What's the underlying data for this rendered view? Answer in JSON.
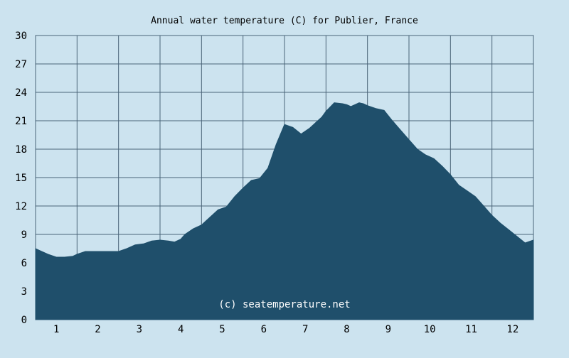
{
  "colors": {
    "background": "#cce3ef",
    "plot_background": "#cce3ef",
    "area_fill": "#1f4f6b",
    "grid": "#4a6478",
    "text": "#000000",
    "watermark": "#ffffff"
  },
  "chart_data": {
    "type": "area",
    "title": "Annual water temperature (C) for Publier, France",
    "xlabel": "",
    "ylabel": "",
    "watermark": "(c) seatemperature.net",
    "ylim": [
      0,
      30
    ],
    "xlim": [
      0,
      12
    ],
    "y_ticks": [
      "0",
      "3",
      "6",
      "9",
      "12",
      "15",
      "18",
      "21",
      "24",
      "27",
      "30"
    ],
    "x_ticks": [
      "1",
      "2",
      "3",
      "4",
      "5",
      "6",
      "7",
      "8",
      "9",
      "10",
      "11",
      "12"
    ],
    "grid": true,
    "series": [
      {
        "x": [
          0.0,
          0.1,
          0.3,
          0.5,
          0.7,
          0.9,
          1.0,
          1.2,
          1.4,
          1.6,
          1.8,
          2.0,
          2.2,
          2.4,
          2.6,
          2.8,
          3.0,
          3.2,
          3.35,
          3.5,
          3.6,
          3.8,
          4.0,
          4.2,
          4.4,
          4.6,
          4.8,
          5.0,
          5.2,
          5.4,
          5.6,
          5.8,
          6.0,
          6.2,
          6.4,
          6.6,
          6.8,
          6.9,
          7.0,
          7.2,
          7.4,
          7.5,
          7.6,
          7.8,
          7.9,
          8.0,
          8.2,
          8.4,
          8.6,
          8.8,
          9.0,
          9.2,
          9.4,
          9.6,
          9.8,
          10.0,
          10.2,
          10.4,
          10.6,
          10.8,
          11.0,
          11.2,
          11.4,
          11.6,
          11.8,
          12.0
        ],
        "values": [
          7.5,
          7.3,
          6.9,
          6.6,
          6.6,
          6.7,
          6.9,
          7.2,
          7.2,
          7.2,
          7.2,
          7.2,
          7.5,
          7.9,
          8.0,
          8.3,
          8.4,
          8.3,
          8.2,
          8.5,
          9.0,
          9.6,
          10.0,
          10.8,
          11.6,
          11.9,
          13.0,
          13.9,
          14.7,
          14.9,
          16.0,
          18.5,
          20.6,
          20.3,
          19.6,
          20.2,
          21.0,
          21.4,
          22.0,
          22.9,
          22.8,
          22.7,
          22.5,
          22.9,
          22.8,
          22.6,
          22.3,
          22.1,
          21.0,
          20.0,
          19.0,
          18.0,
          17.4,
          17.0,
          16.2,
          15.3,
          14.2,
          13.6,
          13.0,
          12.0,
          11.0,
          10.2,
          9.5,
          8.8,
          8.1,
          8.4
        ]
      }
    ]
  }
}
